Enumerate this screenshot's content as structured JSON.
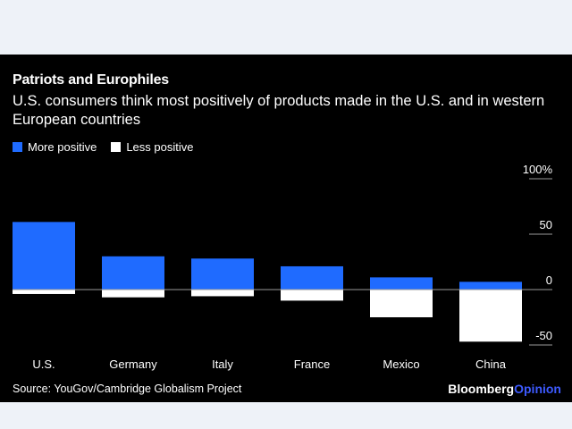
{
  "title": "Patriots and Europhiles",
  "subtitle": "U.S. consumers think most positively of products made in the U.S. and in western European countries",
  "legend": {
    "more_label": "More positive",
    "less_label": "Less positive"
  },
  "source": "Source: YouGov/Cambridge Globalism Project",
  "brand": {
    "part1": "Bloomberg",
    "part2": "Opinion"
  },
  "colors": {
    "more": "#1f6bff",
    "less": "#ffffff",
    "background": "#000000",
    "brand_accent": "#3d5afe"
  },
  "chart_data": {
    "type": "bar",
    "categories": [
      "U.S.",
      "Germany",
      "Italy",
      "France",
      "Mexico",
      "China"
    ],
    "series": [
      {
        "name": "More positive",
        "values": [
          61,
          30,
          28,
          21,
          11,
          7
        ]
      },
      {
        "name": "Less positive",
        "values": [
          -4,
          -7,
          -6,
          -10,
          -25,
          -47
        ]
      }
    ],
    "ylim": [
      -50,
      100
    ],
    "yticks": [
      100,
      50,
      0,
      -50
    ],
    "ytick_labels": [
      "100%",
      "50",
      "0",
      "-50"
    ],
    "grid": false,
    "axis_position": "right",
    "legend_position": "top-left"
  }
}
